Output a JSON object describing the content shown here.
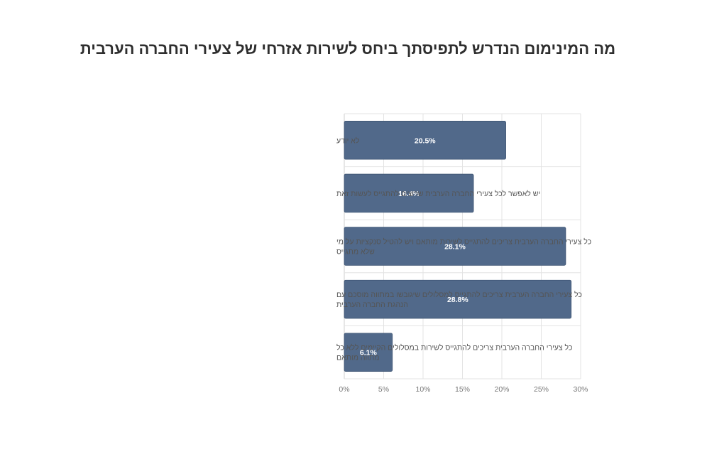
{
  "chart_data": {
    "type": "bar",
    "orientation": "horizontal",
    "title": "מה המינימום הנדרש לתפיסתך ביחס לשירות אזרחי של צעירי החברה הערבית",
    "categories": [
      [
        "לא יודע"
      ],
      [
        "יש לאפשר לכל צעירי החברה הערבית שרוצים להתגייס לעשות זאת"
      ],
      [
        "כל צעירי החברה הערבית צריכים להתגייס לשירות מותאם ויש להטיל סנקציות על מי",
        "שלא מתגייס"
      ],
      [
        "כל צעירי החברה הערבית צריכים להתגייס למסלולים שיגובשו במתווה מוסכם עם",
        "הנהגת החברה הערבית"
      ],
      [
        "כל צעירי החברה הערבית צריכים להתגייס לשירות במסלולים הקיימים ללא כל",
        "מתווה מותאם"
      ]
    ],
    "values": [
      20.5,
      16.4,
      28.1,
      28.8,
      6.1
    ],
    "value_labels": [
      "20.5%",
      "16.4%",
      "28.1%",
      "28.8%",
      "6.1%"
    ],
    "x_ticks": [
      "0%",
      "5%",
      "10%",
      "15%",
      "20%",
      "25%",
      "30%"
    ],
    "xlim": [
      0,
      30
    ],
    "grid": true,
    "bar_color": "#51698a"
  }
}
